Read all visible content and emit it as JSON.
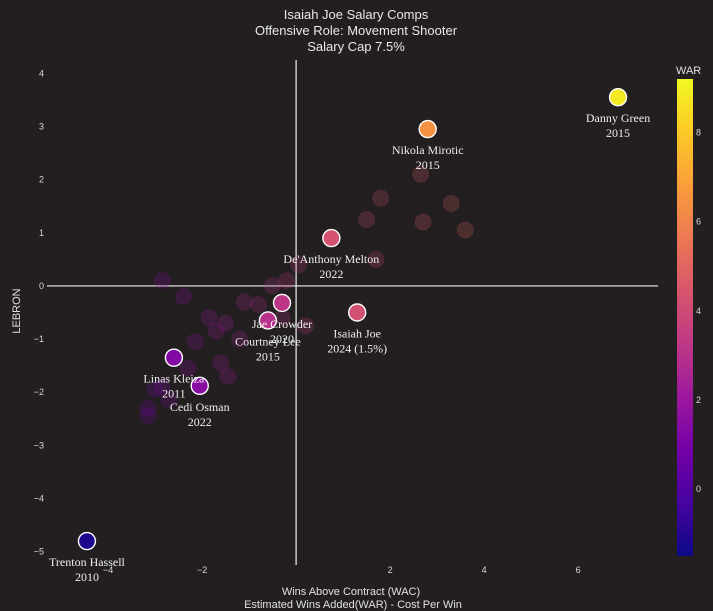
{
  "chart_data": {
    "type": "scatter",
    "title": [
      "Isaiah Joe Salary Comps",
      "Offensive Role: Movement Shooter",
      "Salary Cap 7.5%"
    ],
    "xlabel": [
      "Wins Above Contract (WAC)",
      "Estimated Wins Added(WAR) - Cost Per Win"
    ],
    "ylabel": "LEBRON",
    "xlim": [
      -5.3,
      7.7
    ],
    "ylim": [
      -5.25,
      4.25
    ],
    "x_ticks": [
      -4,
      -2,
      2,
      4,
      6
    ],
    "y_ticks": [
      4,
      3,
      2,
      1,
      0,
      -1,
      -2,
      -3,
      -4,
      -5
    ],
    "colorbar": {
      "title": "WAR",
      "range": [
        -1.5,
        9.2
      ],
      "ticks": [
        0,
        2,
        4,
        6,
        8
      ]
    },
    "labeled_points": [
      {
        "x": 6.85,
        "y": 3.55,
        "war": 8.8,
        "line1": "Danny Green",
        "line2": "2015"
      },
      {
        "x": 2.8,
        "y": 2.95,
        "war": 6.4,
        "line1": "Nikola Mirotic",
        "line2": "2015"
      },
      {
        "x": 0.75,
        "y": 0.9,
        "war": 4.3,
        "line1": "De'Anthony Melton",
        "line2": "2022"
      },
      {
        "x": -0.3,
        "y": -0.32,
        "war": 3.2,
        "line1": "Jae Crowder",
        "line2": "2020"
      },
      {
        "x": -0.6,
        "y": -0.65,
        "war": 3.0,
        "line1": "Courtney Lee",
        "line2": "2015"
      },
      {
        "x": 1.3,
        "y": -0.5,
        "war": 4.2,
        "line1": "Isaiah Joe",
        "line2": "2024 (1.5%)"
      },
      {
        "x": -2.6,
        "y": -1.35,
        "war": 1.3,
        "line1": "Linas Kleiza",
        "line2": "2011"
      },
      {
        "x": -2.05,
        "y": -1.88,
        "war": 1.5,
        "line1": "Cedi Osman",
        "line2": "2022"
      },
      {
        "x": -4.45,
        "y": -4.8,
        "war": -1.2,
        "line1": "Trenton Hassell",
        "line2": "2010"
      }
    ],
    "background_points": [
      {
        "x": 2.65,
        "y": 2.1,
        "war": 4.6
      },
      {
        "x": 1.8,
        "y": 1.65,
        "war": 4.3
      },
      {
        "x": 3.3,
        "y": 1.55,
        "war": 4.8
      },
      {
        "x": 1.5,
        "y": 1.25,
        "war": 4.2
      },
      {
        "x": 2.7,
        "y": 1.2,
        "war": 4.6
      },
      {
        "x": 3.6,
        "y": 1.05,
        "war": 4.9
      },
      {
        "x": 1.7,
        "y": 0.5,
        "war": 4.0
      },
      {
        "x": 0.05,
        "y": 0.4,
        "war": 3.4
      },
      {
        "x": -0.2,
        "y": 0.1,
        "war": 3.2
      },
      {
        "x": -0.5,
        "y": 0.0,
        "war": 3.0
      },
      {
        "x": -1.1,
        "y": -0.3,
        "war": 2.6
      },
      {
        "x": -0.8,
        "y": -0.35,
        "war": 2.8
      },
      {
        "x": -0.3,
        "y": -0.6,
        "war": 3.1
      },
      {
        "x": 0.2,
        "y": -0.75,
        "war": 3.4
      },
      {
        "x": -1.85,
        "y": -0.6,
        "war": 2.0
      },
      {
        "x": -1.5,
        "y": -0.7,
        "war": 2.3
      },
      {
        "x": -1.7,
        "y": -0.85,
        "war": 2.1
      },
      {
        "x": -2.15,
        "y": -1.05,
        "war": 1.8
      },
      {
        "x": -1.2,
        "y": -1.0,
        "war": 2.4
      },
      {
        "x": -2.85,
        "y": 0.1,
        "war": 1.4
      },
      {
        "x": -2.4,
        "y": -0.2,
        "war": 1.6
      },
      {
        "x": -1.6,
        "y": -1.45,
        "war": 2.1
      },
      {
        "x": -1.45,
        "y": -1.7,
        "war": 2.2
      },
      {
        "x": -2.3,
        "y": -1.55,
        "war": 1.6
      },
      {
        "x": -2.85,
        "y": -1.9,
        "war": 1.2
      },
      {
        "x": -3.0,
        "y": -1.95,
        "war": 1.0
      },
      {
        "x": -2.7,
        "y": -2.15,
        "war": 1.3
      },
      {
        "x": -3.15,
        "y": -2.3,
        "war": 0.8
      },
      {
        "x": -3.15,
        "y": -2.45,
        "war": 0.8
      }
    ]
  }
}
